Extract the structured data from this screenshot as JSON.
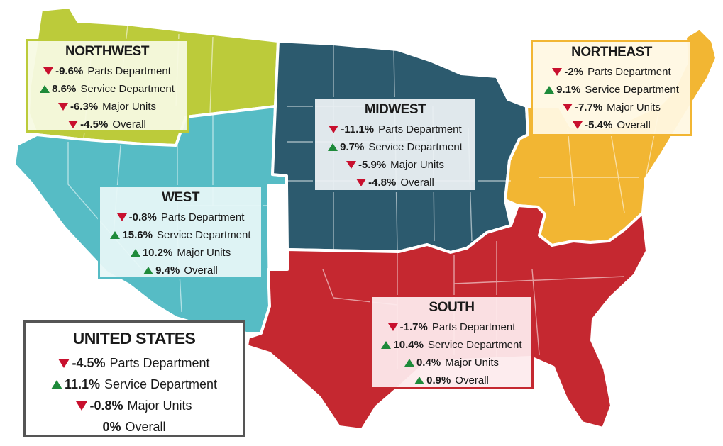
{
  "colors": {
    "northwest": "#bccb3a",
    "west": "#56bcc5",
    "midwest": "#2c5a6e",
    "northeast": "#f2b633",
    "south": "#c52830",
    "down_arrow": "#c8102e",
    "up_arrow": "#1e8a3a"
  },
  "regions": {
    "northwest": {
      "title": "NORTHWEST",
      "rows": [
        {
          "value": "-9.6%",
          "label": "Parts Department",
          "trend": "down"
        },
        {
          "value": "8.6%",
          "label": "Service Department",
          "trend": "up"
        },
        {
          "value": "-6.3%",
          "label": "Major Units",
          "trend": "down"
        },
        {
          "value": "-4.5%",
          "label": "Overall",
          "trend": "down"
        }
      ]
    },
    "northeast": {
      "title": "NORTHEAST",
      "rows": [
        {
          "value": "-2%",
          "label": "Parts Department",
          "trend": "down"
        },
        {
          "value": "9.1%",
          "label": "Service Department",
          "trend": "up"
        },
        {
          "value": "-7.7%",
          "label": "Major Units",
          "trend": "down"
        },
        {
          "value": "-5.4%",
          "label": "Overall",
          "trend": "down"
        }
      ]
    },
    "midwest": {
      "title": "MIDWEST",
      "rows": [
        {
          "value": "-11.1%",
          "label": "Parts Department",
          "trend": "down"
        },
        {
          "value": "9.7%",
          "label": "Service Department",
          "trend": "up"
        },
        {
          "value": "-5.9%",
          "label": "Major Units",
          "trend": "down"
        },
        {
          "value": "-4.8%",
          "label": "Overall",
          "trend": "down"
        }
      ]
    },
    "west": {
      "title": "WEST",
      "rows": [
        {
          "value": "-0.8%",
          "label": "Parts Department",
          "trend": "down"
        },
        {
          "value": "15.6%",
          "label": "Service Department",
          "trend": "up"
        },
        {
          "value": "10.2%",
          "label": "Major Units",
          "trend": "up"
        },
        {
          "value": "9.4%",
          "label": "Overall",
          "trend": "up"
        }
      ]
    },
    "south": {
      "title": "SOUTH",
      "rows": [
        {
          "value": "-1.7%",
          "label": "Parts Department",
          "trend": "down"
        },
        {
          "value": "10.4%",
          "label": "Service Department",
          "trend": "up"
        },
        {
          "value": "0.4%",
          "label": "Major Units",
          "trend": "up"
        },
        {
          "value": "0.9%",
          "label": "Overall",
          "trend": "up"
        }
      ]
    },
    "us": {
      "title": "UNITED STATES",
      "rows": [
        {
          "value": "-4.5%",
          "label": "Parts Department",
          "trend": "down"
        },
        {
          "value": "11.1%",
          "label": "Service Department",
          "trend": "up"
        },
        {
          "value": "-0.8%",
          "label": "Major Units",
          "trend": "down"
        },
        {
          "value": "0%",
          "label": "Overall",
          "trend": "none"
        }
      ]
    }
  }
}
